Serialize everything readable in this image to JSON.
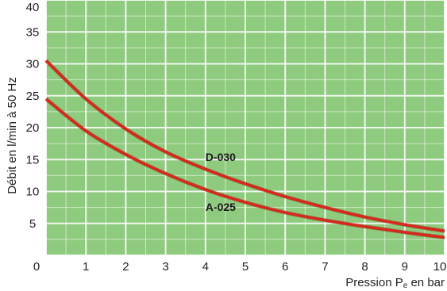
{
  "chart_data": {
    "type": "line",
    "xlabel_parts": {
      "before": "Pression P",
      "subscript": "e",
      "after": " en bar"
    },
    "ylabel": "Débit en l/min à 50 Hz",
    "xlim": [
      0,
      10
    ],
    "ylim": [
      0,
      40
    ],
    "x_ticks": [
      "0",
      "1",
      "2",
      "3",
      "4",
      "5",
      "6",
      "7",
      "8",
      "9",
      "10"
    ],
    "y_ticks": [
      "5",
      "10",
      "15",
      "20",
      "25",
      "30",
      "35",
      "40"
    ],
    "grid": true,
    "background_color": "#8fcb7e",
    "grid_color": "#ffffff",
    "line_color": "#d42a1c",
    "series": [
      {
        "name": "D-030",
        "x": [
          0,
          1,
          2,
          3,
          4,
          5,
          6,
          7,
          8,
          9,
          10
        ],
        "y": [
          30.5,
          24.5,
          19.8,
          16.2,
          13.5,
          11.2,
          9.2,
          7.5,
          6.0,
          4.8,
          3.8
        ]
      },
      {
        "name": "A-025",
        "x": [
          0,
          1,
          2,
          3,
          4,
          5,
          6,
          7,
          8,
          9,
          10
        ],
        "y": [
          24.5,
          19.5,
          15.8,
          12.8,
          10.3,
          8.3,
          6.7,
          5.5,
          4.5,
          3.6,
          2.8
        ]
      }
    ]
  }
}
